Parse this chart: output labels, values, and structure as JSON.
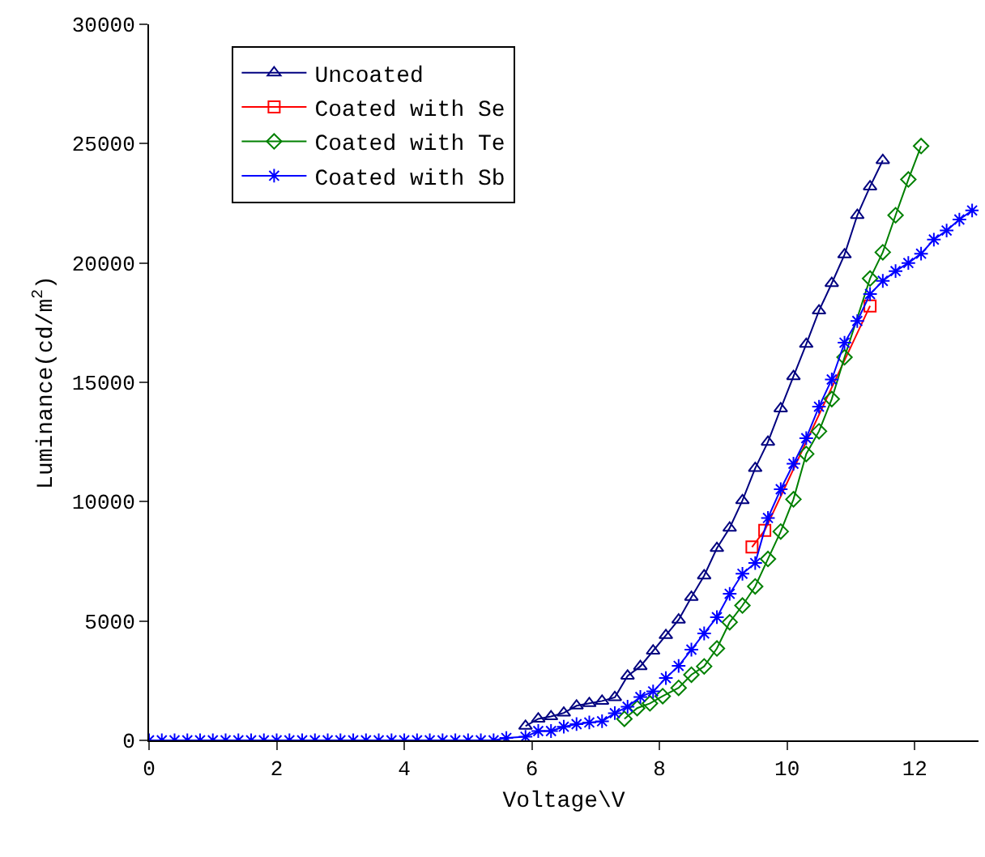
{
  "chart_data": {
    "type": "line",
    "xlabel": "Voltage\\V",
    "ylabel": "Luminance(cd/m$^{2}$)",
    "xlim": [
      0,
      13
    ],
    "xticks": [
      0,
      2,
      4,
      6,
      8,
      10,
      12
    ],
    "ylim": [
      0,
      30000
    ],
    "yticks": [
      0,
      5000,
      10000,
      15000,
      20000,
      25000,
      30000
    ],
    "legend": "top left",
    "series": [
      {
        "name": "Uncoated",
        "color": "#000080",
        "marker": "triangle",
        "x": [
          5.9,
          6.1,
          6.3,
          6.5,
          6.7,
          6.9,
          7.1,
          7.3,
          7.5,
          7.7,
          7.9,
          8.1,
          8.3,
          8.5,
          8.7,
          8.9,
          9.1,
          9.3,
          9.5,
          9.7,
          9.9,
          10.1,
          10.3,
          10.5,
          10.7,
          10.9,
          11.1,
          11.3,
          11.5
        ],
        "values": [
          600,
          900,
          1000,
          1150,
          1450,
          1550,
          1650,
          1800,
          2700,
          3100,
          3750,
          4400,
          5050,
          6000,
          6900,
          8050,
          8900,
          10050,
          11400,
          12500,
          13900,
          15250,
          16600,
          18000,
          19150,
          20350,
          22000,
          23200,
          24300
        ]
      },
      {
        "name": "Coated with Se",
        "color": "#ff0000",
        "marker": "square",
        "x": [
          9.45,
          9.65,
          11.3
        ],
        "values": [
          8100,
          8800,
          18200
        ]
      },
      {
        "name": "Coated with Te",
        "color": "#008000",
        "marker": "diamond",
        "x": [
          7.45,
          7.65,
          7.85,
          8.05,
          8.3,
          8.5,
          8.7,
          8.9,
          9.1,
          9.3,
          9.5,
          9.7,
          9.9,
          10.1,
          10.3,
          10.5,
          10.7,
          10.9,
          11.3,
          11.5,
          11.7,
          11.9,
          12.1
        ],
        "values": [
          900,
          1350,
          1550,
          1850,
          2200,
          2750,
          3100,
          3850,
          4950,
          5650,
          6450,
          7600,
          8750,
          10100,
          12000,
          12950,
          14300,
          16050,
          19350,
          20450,
          22000,
          23500,
          24900
        ]
      },
      {
        "name": "Coated with Sb",
        "color": "#0000ff",
        "marker": "cross",
        "x": [
          0,
          0.2,
          0.4,
          0.6,
          0.8,
          1.0,
          1.2,
          1.4,
          1.6,
          1.8,
          2.0,
          2.2,
          2.4,
          2.6,
          2.8,
          3.0,
          3.2,
          3.4,
          3.6,
          3.8,
          4.0,
          4.2,
          4.4,
          4.6,
          4.8,
          5.0,
          5.2,
          5.4,
          5.6,
          5.9,
          6.1,
          6.3,
          6.5,
          6.7,
          6.9,
          7.1,
          7.3,
          7.5,
          7.7,
          7.9,
          8.1,
          8.3,
          8.5,
          8.7,
          8.9,
          9.1,
          9.3,
          9.5,
          9.7,
          9.9,
          10.1,
          10.3,
          10.5,
          10.7,
          10.9,
          11.1,
          11.3,
          11.5,
          11.7,
          11.9,
          12.1,
          12.3,
          12.5,
          12.7,
          12.9
        ],
        "values": [
          0,
          0,
          0,
          0,
          0,
          0,
          0,
          0,
          0,
          0,
          0,
          0,
          0,
          0,
          0,
          0,
          0,
          0,
          0,
          0,
          0,
          0,
          0,
          0,
          0,
          0,
          0,
          0,
          100,
          150,
          390,
          390,
          570,
          680,
          750,
          800,
          1140,
          1410,
          1820,
          2050,
          2610,
          3120,
          3800,
          4480,
          5160,
          6140,
          6980,
          7430,
          9320,
          10520,
          11590,
          12660,
          13980,
          15120,
          16660,
          17570,
          18700,
          19250,
          19660,
          20000,
          20390,
          20980,
          21360,
          21820,
          22200
        ]
      }
    ]
  }
}
